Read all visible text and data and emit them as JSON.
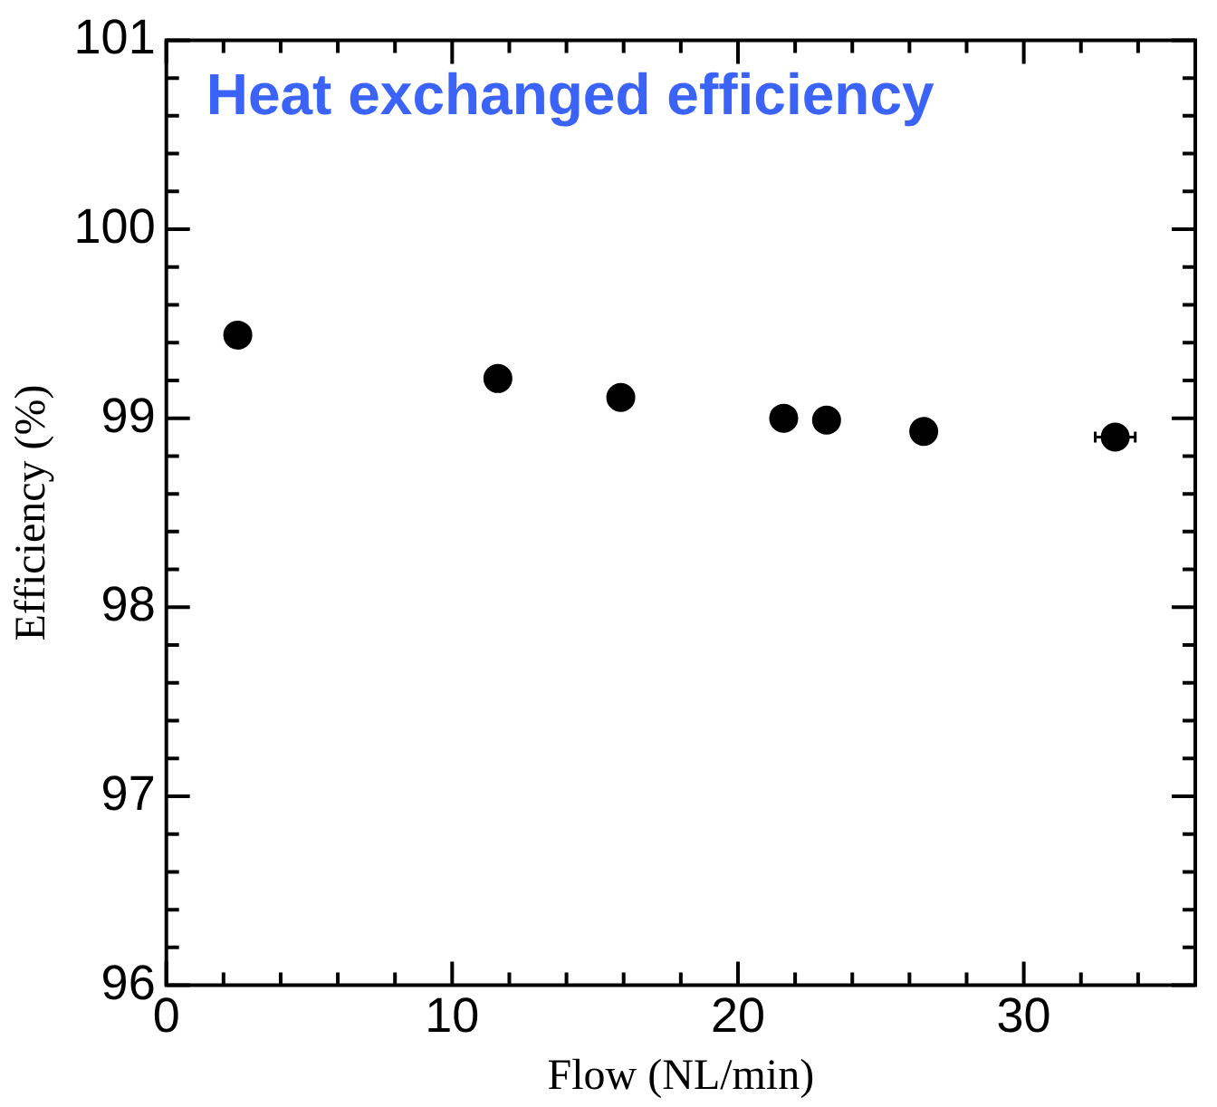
{
  "chart_data": {
    "type": "scatter",
    "title": "Heat exchanged efficiency",
    "xlabel": "Flow (NL/min)",
    "ylabel": "Efficiency (%)",
    "x": [
      2.5,
      11.6,
      15.9,
      21.6,
      23.1,
      26.5,
      33.2
    ],
    "series": [
      {
        "color": "#000000",
        "values": [
          99.44,
          99.21,
          99.11,
          99.0,
          98.99,
          98.93,
          98.9
        ],
        "xerrors": [
          null,
          null,
          null,
          null,
          null,
          null,
          0.7
        ]
      }
    ],
    "marker": "circle",
    "grid": false,
    "legend": false,
    "xlim": [
      0,
      36
    ],
    "ylim": [
      96,
      101
    ],
    "xticks": [
      0,
      {
        "value": 2,
        "label": null
      },
      {
        "value": 4,
        "label": null
      },
      {
        "value": 6,
        "label": null
      },
      {
        "value": 8,
        "label": null
      },
      10,
      {
        "value": 12,
        "label": null
      },
      {
        "value": 14,
        "label": null
      },
      {
        "value": 16,
        "label": null
      },
      {
        "value": 18,
        "label": null
      },
      20,
      {
        "value": 22,
        "label": null
      },
      {
        "value": 24,
        "label": null
      },
      {
        "value": 26,
        "label": null
      },
      {
        "value": 28,
        "label": null
      },
      30,
      {
        "value": 32,
        "label": null
      },
      {
        "value": 34,
        "label": null
      }
    ],
    "yticks": [
      96,
      {
        "value": 96.2,
        "label": null
      },
      {
        "value": 96.4,
        "label": null
      },
      {
        "value": 96.6,
        "label": null
      },
      {
        "value": 96.8,
        "label": null
      },
      97,
      {
        "value": 97.2,
        "label": null
      },
      {
        "value": 97.4,
        "label": null
      },
      {
        "value": 97.6,
        "label": null
      },
      {
        "value": 97.8,
        "label": null
      },
      98,
      {
        "value": 98.2,
        "label": null
      },
      {
        "value": 98.4,
        "label": null
      },
      {
        "value": 98.6,
        "label": null
      },
      {
        "value": 98.8,
        "label": null
      },
      99,
      {
        "value": 99.2,
        "label": null
      },
      {
        "value": 99.4,
        "label": null
      },
      {
        "value": 99.6,
        "label": null
      },
      {
        "value": 99.8,
        "label": null
      },
      100,
      {
        "value": 100.2,
        "label": null
      },
      {
        "value": 100.4,
        "label": null
      },
      {
        "value": 100.6,
        "label": null
      },
      {
        "value": 100.8,
        "label": null
      },
      101
    ]
  }
}
